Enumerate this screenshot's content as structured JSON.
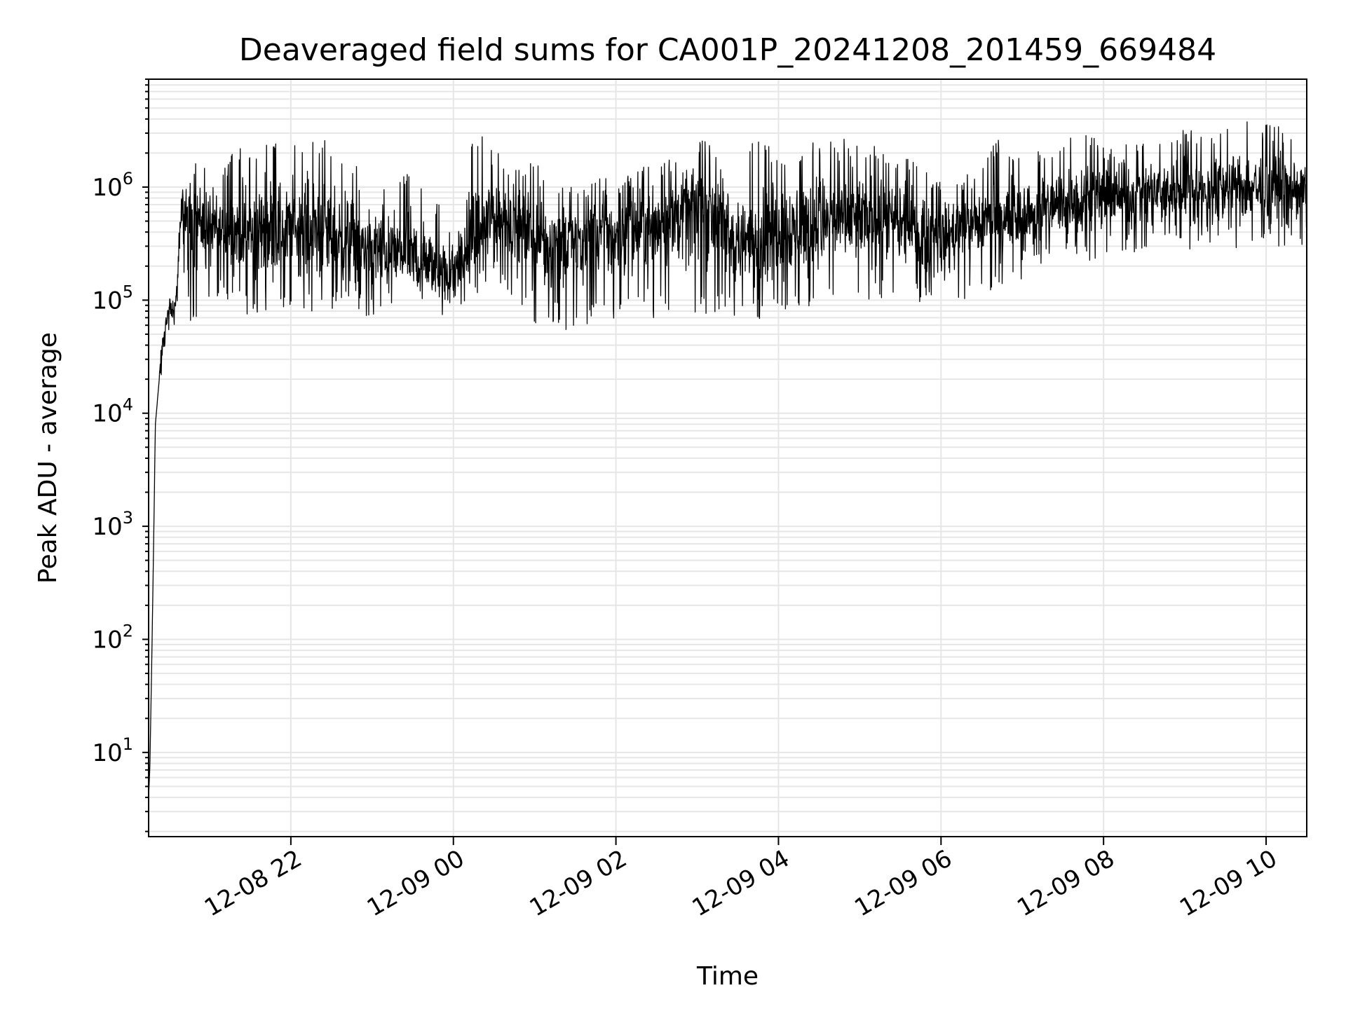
{
  "chart_data": {
    "type": "line",
    "title": "Deaveraged field sums for CA001P_20241208_201459_669484",
    "xlabel": "Time",
    "ylabel": "Peak ADU - average",
    "yscale": "log",
    "ylim": [
      1.8,
      9000000
    ],
    "xlim": [
      "12-08 20:15",
      "12-09 10:30"
    ],
    "grid": true,
    "line_color": "#000000",
    "grid_color": "#e6e6e6",
    "x_ticks": [
      {
        "label": "12-08 22",
        "time": "12-08 22:00"
      },
      {
        "label": "12-09 00",
        "time": "12-09 00:00"
      },
      {
        "label": "12-09 02",
        "time": "12-09 02:00"
      },
      {
        "label": "12-09 04",
        "time": "12-09 04:00"
      },
      {
        "label": "12-09 06",
        "time": "12-09 06:00"
      },
      {
        "label": "12-09 08",
        "time": "12-09 08:00"
      },
      {
        "label": "12-09 10",
        "time": "12-09 10:00"
      }
    ],
    "y_ticks": [
      {
        "base": "10",
        "exp": "1",
        "value": 10
      },
      {
        "base": "10",
        "exp": "2",
        "value": 100
      },
      {
        "base": "10",
        "exp": "3",
        "value": 1000
      },
      {
        "base": "10",
        "exp": "4",
        "value": 10000
      },
      {
        "base": "10",
        "exp": "5",
        "value": 100000
      },
      {
        "base": "10",
        "exp": "6",
        "value": 1000000
      }
    ],
    "series": [
      {
        "x": [
          "12-08 20:15",
          "12-08 20:16",
          "12-08 20:18",
          "12-08 20:20",
          "12-08 20:25",
          "12-08 20:30",
          "12-08 20:35",
          "12-08 20:40",
          "12-08 20:45",
          "12-08 20:50",
          "12-08 21:00",
          "12-08 21:10",
          "12-08 21:20",
          "12-08 21:30",
          "12-08 21:45",
          "12-08 22:00",
          "12-08 22:15",
          "12-08 22:30",
          "12-08 22:45",
          "12-08 23:00",
          "12-08 23:15",
          "12-08 23:30",
          "12-08 23:45",
          "12-09 00:00",
          "12-09 00:15",
          "12-09 00:30",
          "12-09 00:45",
          "12-09 01:00",
          "12-09 01:15",
          "12-09 01:30",
          "12-09 01:45",
          "12-09 02:00",
          "12-09 02:15",
          "12-09 02:30",
          "12-09 02:45",
          "12-09 03:00",
          "12-09 03:15",
          "12-09 03:30",
          "12-09 03:45",
          "12-09 04:00",
          "12-09 04:15",
          "12-09 04:30",
          "12-09 04:45",
          "12-09 05:00",
          "12-09 05:15",
          "12-09 05:30",
          "12-09 05:45",
          "12-09 06:00",
          "12-09 06:15",
          "12-09 06:30",
          "12-09 06:45",
          "12-09 07:00",
          "12-09 07:15",
          "12-09 07:30",
          "12-09 07:45",
          "12-09 08:00",
          "12-09 08:15",
          "12-09 08:30",
          "12-09 08:45",
          "12-09 09:00",
          "12-09 09:15",
          "12-09 09:30",
          "12-09 09:45",
          "12-09 10:00",
          "12-09 10:15",
          "12-09 10:30"
        ],
        "low": [
          4,
          5,
          50,
          2000,
          25000,
          50000,
          60000,
          200000,
          60000,
          70000,
          80000,
          90000,
          90000,
          70000,
          80000,
          80000,
          80000,
          80000,
          80000,
          70000,
          80000,
          90000,
          80000,
          60000,
          100000,
          150000,
          100000,
          60000,
          50000,
          55000,
          60000,
          60000,
          70000,
          70000,
          80000,
          70000,
          80000,
          60000,
          60000,
          80000,
          70000,
          90000,
          100000,
          100000,
          100000,
          100000,
          90000,
          80000,
          100000,
          110000,
          130000,
          150000,
          180000,
          200000,
          220000,
          220000,
          250000,
          250000,
          250000,
          280000,
          280000,
          260000,
          280000,
          280000,
          300000,
          300000
        ],
        "mid": [
          4,
          8,
          200,
          8000,
          40000,
          80000,
          90000,
          700000,
          500000,
          600000,
          450000,
          380000,
          400000,
          380000,
          420000,
          450000,
          420000,
          380000,
          340000,
          280000,
          260000,
          220000,
          180000,
          170000,
          350000,
          550000,
          500000,
          350000,
          350000,
          350000,
          400000,
          400000,
          450000,
          500000,
          600000,
          650000,
          600000,
          300000,
          350000,
          450000,
          450000,
          500000,
          500000,
          500000,
          550000,
          450000,
          400000,
          350000,
          450000,
          500000,
          500000,
          550000,
          650000,
          700000,
          800000,
          800000,
          850000,
          900000,
          900000,
          950000,
          900000,
          1000000,
          1000000,
          950000,
          1000000,
          950000
        ],
        "high": [
          4,
          10,
          300,
          10000,
          60000,
          110000,
          160000,
          1400000,
          1300000,
          1800000,
          1600000,
          1500000,
          2300000,
          2200000,
          3100000,
          2200000,
          3000000,
          2500000,
          1600000,
          1400000,
          1200000,
          1500000,
          800000,
          500000,
          3000000,
          2600000,
          1400000,
          1800000,
          1100000,
          1000000,
          1200000,
          1200000,
          1400000,
          1800000,
          1800000,
          2800000,
          2500000,
          1800000,
          2900000,
          2000000,
          2200000,
          2600000,
          2800000,
          2300000,
          2300000,
          2000000,
          1600000,
          1200000,
          1300000,
          1600000,
          3100000,
          1900000,
          2200000,
          2800000,
          3000000,
          2500000,
          2400000,
          2600000,
          2800000,
          3300000,
          3000000,
          3200000,
          4500000,
          3600000,
          3500000,
          1600000
        ]
      }
    ]
  }
}
